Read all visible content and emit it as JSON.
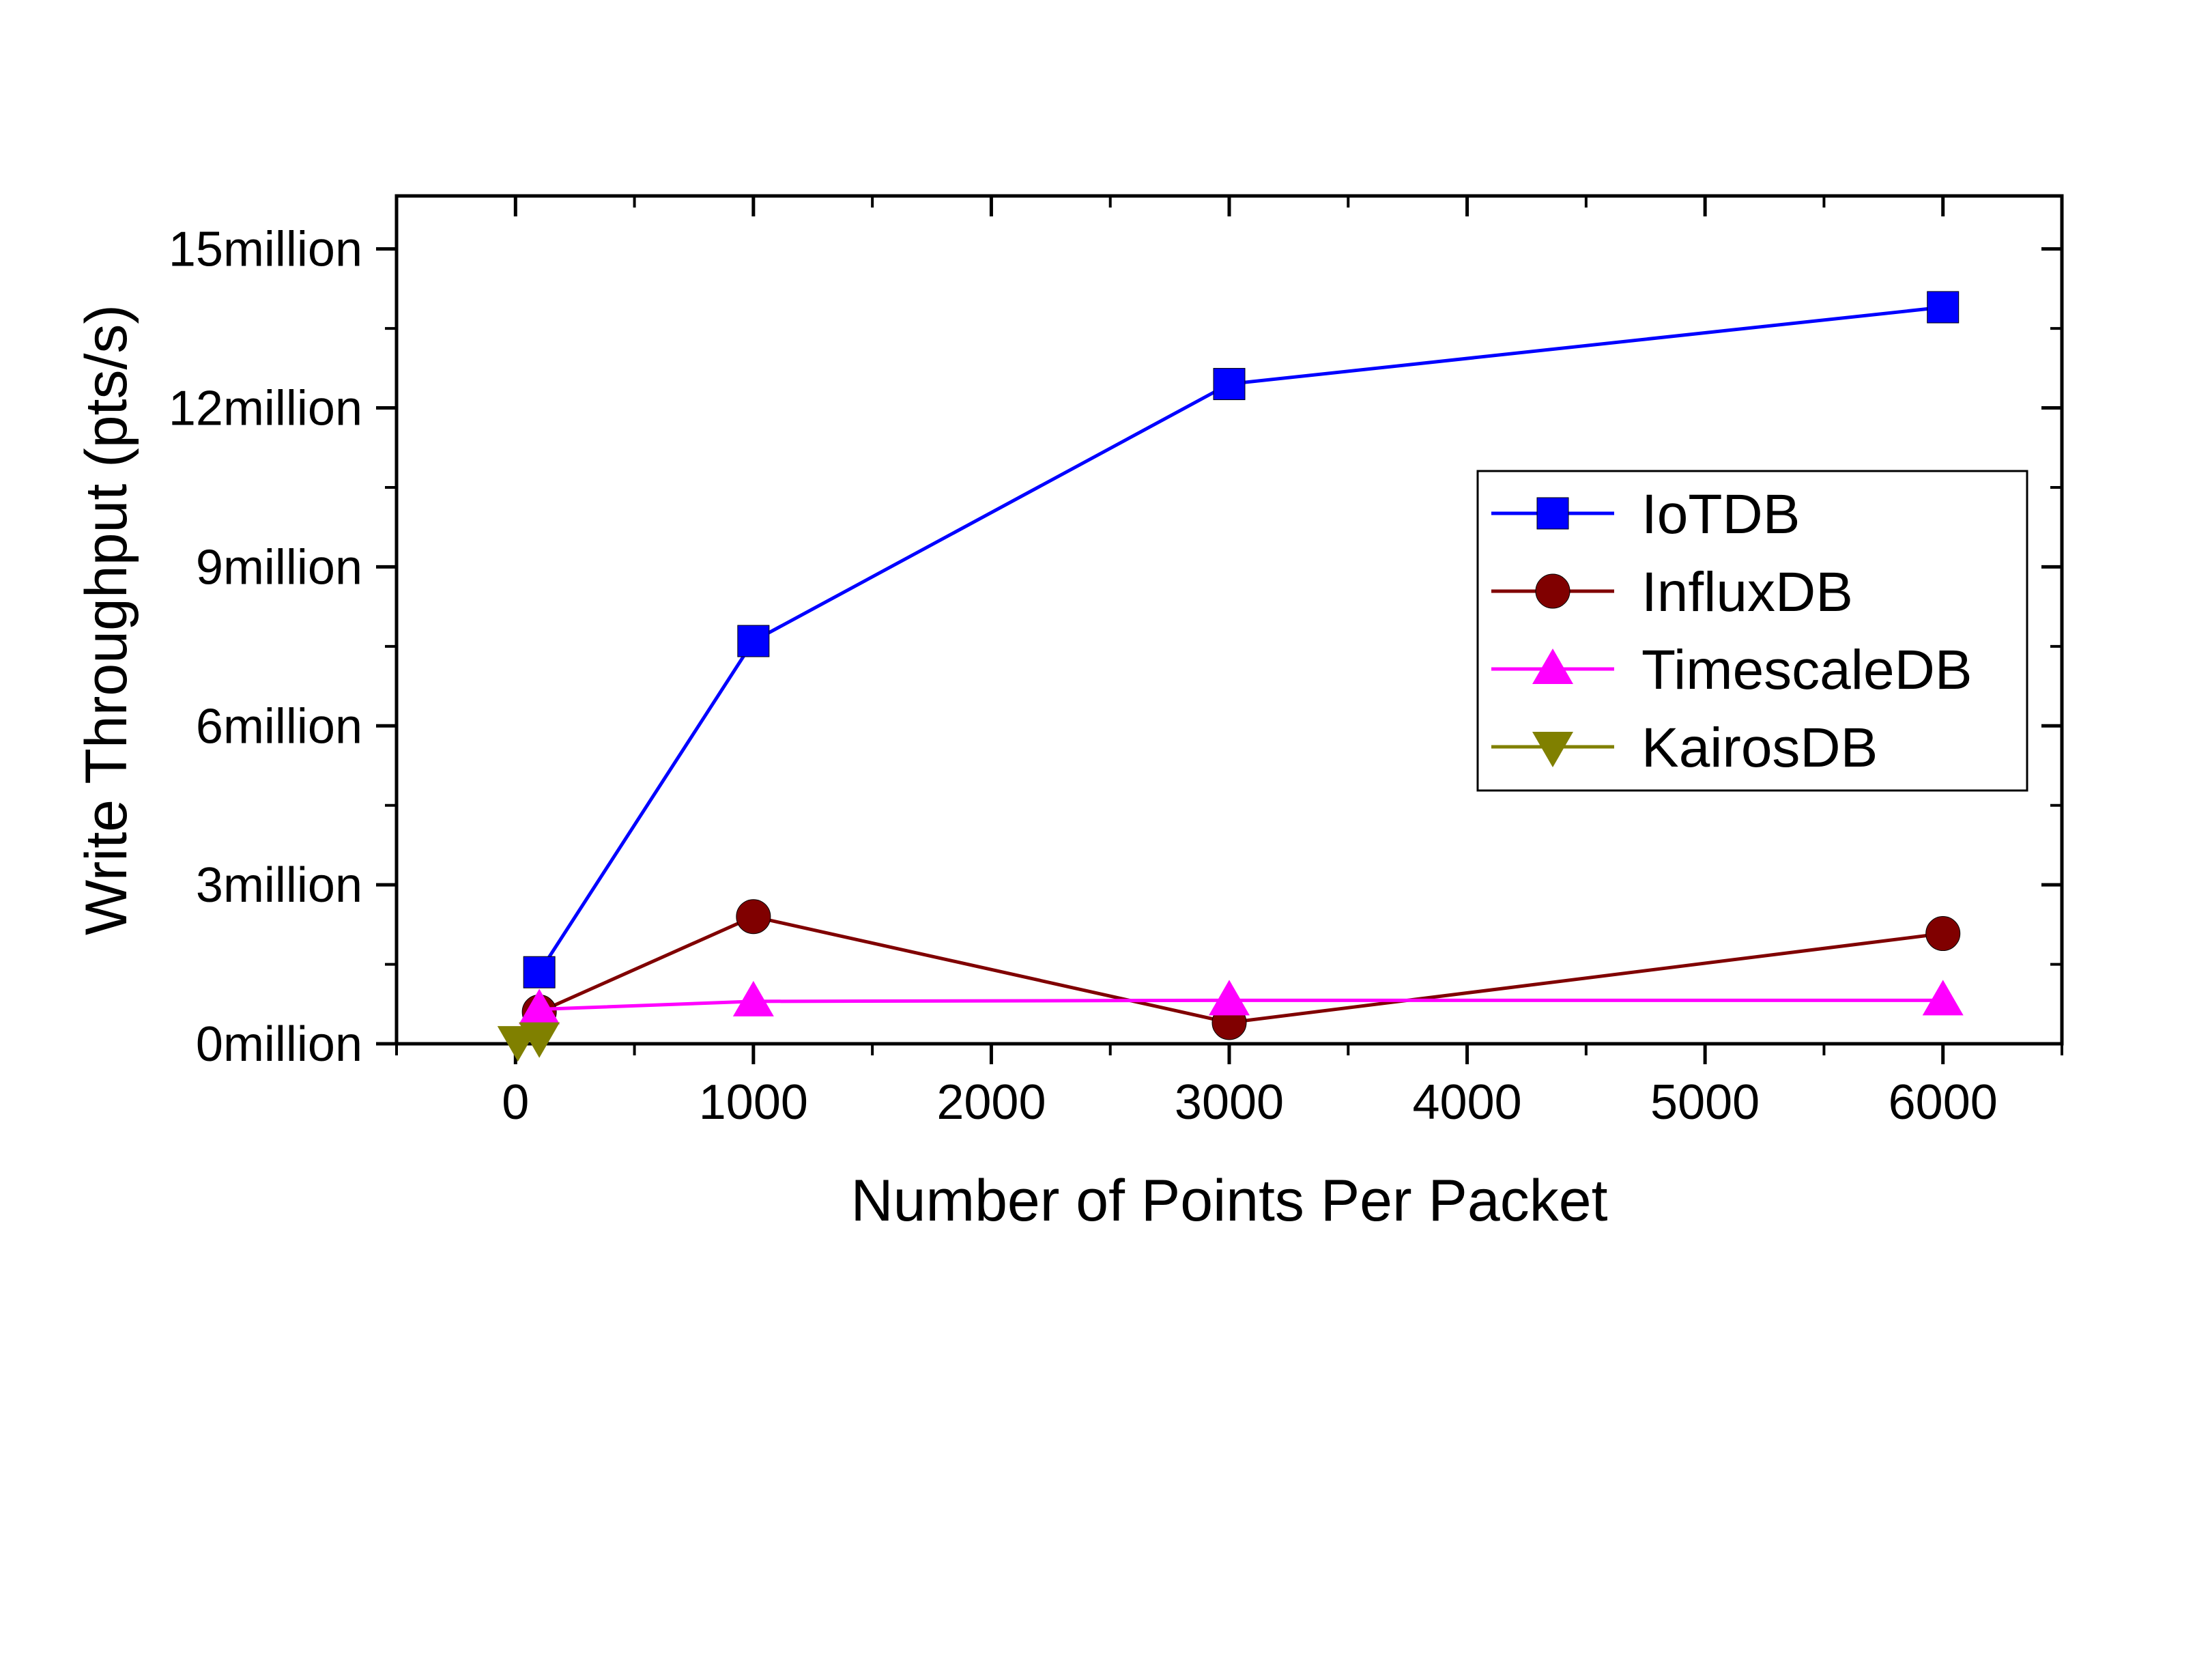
{
  "chart_data": {
    "type": "line",
    "xlabel": "Number of Points Per Packet",
    "ylabel": "Write Throughput (pts/s)",
    "xlim": [
      -500,
      6500
    ],
    "ylim": [
      0,
      16000000
    ],
    "x_ticks": [
      0,
      1000,
      2000,
      3000,
      4000,
      5000,
      6000
    ],
    "x_tick_labels": [
      "0",
      "1000",
      "2000",
      "3000",
      "4000",
      "5000",
      "6000"
    ],
    "y_ticks": [
      0,
      3000000,
      6000000,
      9000000,
      12000000,
      15000000
    ],
    "y_tick_labels": [
      "0million",
      "3million",
      "6million",
      "9million",
      "12million",
      "15million"
    ],
    "legend_position": "right",
    "grid": false,
    "series": [
      {
        "name": "IoTDB",
        "color": "#0000FF",
        "marker": "square",
        "x": [
          100,
          1000,
          3000,
          6000
        ],
        "values": [
          1350000,
          7600000,
          12450000,
          13900000
        ]
      },
      {
        "name": "InfluxDB",
        "color": "#800000",
        "marker": "circle",
        "x": [
          100,
          1000,
          3000,
          6000
        ],
        "values": [
          600000,
          2400000,
          400000,
          2080000
        ]
      },
      {
        "name": "TimescaleDB",
        "color": "#FF00FF",
        "marker": "triangle-up",
        "x": [
          100,
          1000,
          3000,
          6000
        ],
        "values": [
          650000,
          800000,
          820000,
          820000
        ]
      },
      {
        "name": "KairosDB",
        "color": "#808000",
        "marker": "triangle-down",
        "x": [
          10,
          100
        ],
        "values": [
          50000,
          120000
        ]
      }
    ]
  }
}
